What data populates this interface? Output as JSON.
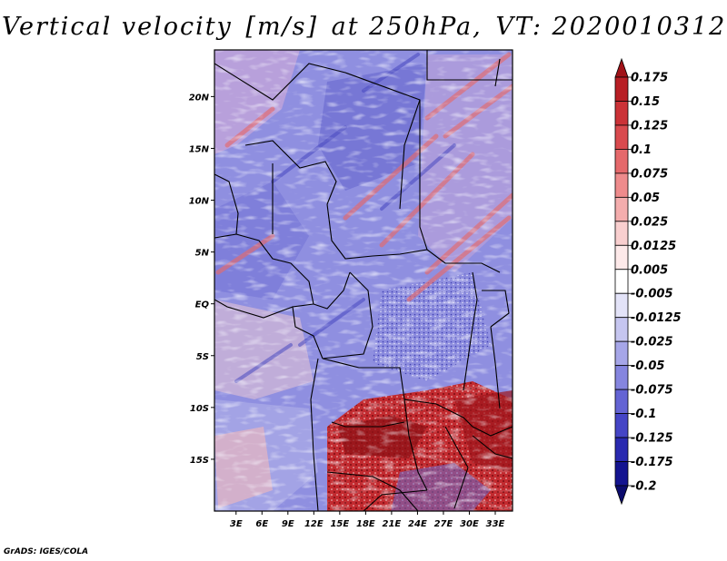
{
  "title": {
    "variable": "Vertical velocity",
    "units": "[m/s]",
    "level": "at 250hPa,",
    "valid_time": "VT: 2020010312"
  },
  "axes": {
    "lat_labels": [
      "20N",
      "15N",
      "10N",
      "5N",
      "EQ",
      "5S",
      "10S",
      "15S"
    ],
    "lat_values": [
      20,
      15,
      10,
      5,
      0,
      -5,
      -10,
      -15
    ],
    "lon_labels": [
      "3E",
      "6E",
      "9E",
      "12E",
      "15E",
      "18E",
      "21E",
      "24E",
      "27E",
      "30E",
      "33E"
    ],
    "lon_values": [
      3,
      6,
      9,
      12,
      15,
      18,
      21,
      24,
      27,
      30,
      33
    ],
    "lon_range": [
      0.5,
      35.0
    ],
    "lat_range": [
      -20.0,
      24.5
    ]
  },
  "colorbar": {
    "labels": [
      "0.175",
      "0.15",
      "0.125",
      "0.1",
      "0.075",
      "0.05",
      "0.025",
      "0.0125",
      "0.005",
      "-0.005",
      "-0.0125",
      "-0.025",
      "-0.05",
      "-0.075",
      "-0.1",
      "-0.125",
      "-0.175",
      "-0.2"
    ],
    "colors": [
      "#a01218",
      "#b81f25",
      "#cb3237",
      "#d94a4e",
      "#e5696b",
      "#ee8b8c",
      "#f4adad",
      "#f9cfcf",
      "#fde9e9",
      "#ffffff",
      "#e3e3f8",
      "#c6c6f0",
      "#a6a6e8",
      "#8585df",
      "#6464d4",
      "#4545c6",
      "#2a2ab0",
      "#141490",
      "#0c0c6e"
    ]
  },
  "chart_data": {
    "type": "heatmap",
    "title": "Vertical velocity [m/s] at 250hPa, VT: 2020010312",
    "field": "vertical velocity at 250 hPa",
    "units": "m/s",
    "valid_time": "2020010312",
    "region": "Central Africa",
    "x_axis": "longitude (degrees E)",
    "y_axis": "latitude",
    "xlim": [
      0.5,
      35.0
    ],
    "ylim": [
      -20.0,
      24.5
    ],
    "contour_levels": [
      -0.2,
      -0.175,
      -0.125,
      -0.1,
      -0.075,
      -0.05,
      -0.025,
      -0.0125,
      -0.005,
      0.005,
      0.0125,
      0.025,
      0.05,
      0.075,
      0.1,
      0.125,
      0.15,
      0.175
    ],
    "notable_features": [
      "strong upward motion (red) over southern Congo/Angola/Zambia, approx 12S-20S, 14E-34E",
      "descending motion (blue) dominant over Sahel and western Congo basin",
      "NE-SW oriented banded streaks over Sudan/Chad"
    ]
  },
  "credit": "GrADS: IGES/COLA"
}
